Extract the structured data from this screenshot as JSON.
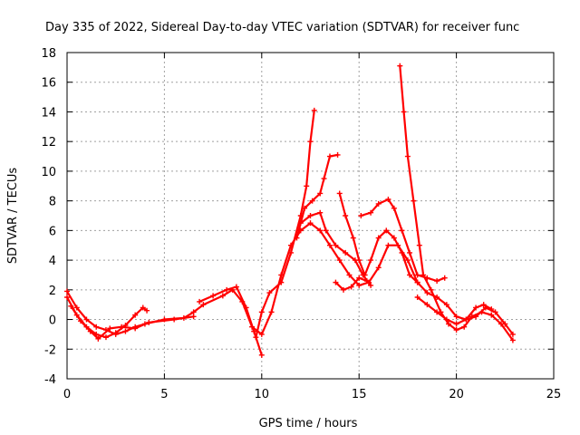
{
  "chart_data": {
    "type": "line",
    "title": "Day 335 of 2022, Sidereal Day-to-day VTEC variation (SDTVAR) for receiver func",
    "xlabel": "GPS time / hours",
    "ylabel": "SDTVAR / TECUs",
    "xlim": [
      0,
      25
    ],
    "ylim": [
      -4,
      18
    ],
    "xticks": [
      0,
      5,
      10,
      15,
      20,
      25
    ],
    "yticks": [
      -4,
      -2,
      0,
      2,
      4,
      6,
      8,
      10,
      12,
      14,
      16,
      18
    ],
    "grid": true,
    "color": "#ff0000",
    "marker": "plus",
    "series": [
      {
        "name": "track-1",
        "points": [
          [
            0.0,
            1.9
          ],
          [
            0.5,
            0.8
          ],
          [
            1.0,
            0.0
          ],
          [
            1.5,
            -0.5
          ],
          [
            2.0,
            -0.7
          ],
          [
            2.5,
            -1.0
          ],
          [
            3.0,
            -0.8
          ],
          [
            3.5,
            -0.5
          ],
          [
            4.0,
            -0.3
          ],
          [
            5.0,
            0.0
          ],
          [
            6.0,
            0.1
          ],
          [
            6.5,
            0.5
          ],
          [
            7.0,
            1.0
          ],
          [
            8.0,
            1.6
          ],
          [
            8.5,
            2.0
          ],
          [
            9.0,
            1.2
          ],
          [
            9.5,
            -0.5
          ],
          [
            10.0,
            -1.0
          ],
          [
            10.5,
            0.5
          ],
          [
            11.0,
            3.0
          ],
          [
            11.5,
            5.0
          ],
          [
            12.0,
            6.0
          ],
          [
            12.5,
            6.5
          ],
          [
            13.0,
            6.0
          ],
          [
            13.5,
            5.0
          ],
          [
            14.0,
            4.0
          ],
          [
            14.5,
            3.0
          ],
          [
            15.0,
            2.3
          ],
          [
            15.5,
            2.5
          ],
          [
            16.0,
            3.5
          ],
          [
            16.5,
            5.0
          ],
          [
            17.0,
            5.0
          ],
          [
            17.5,
            4.0
          ],
          [
            18.0,
            2.5
          ],
          [
            18.5,
            1.8
          ],
          [
            19.0,
            1.5
          ],
          [
            19.5,
            1.0
          ],
          [
            20.0,
            0.2
          ],
          [
            20.5,
            0.0
          ],
          [
            21.0,
            0.2
          ],
          [
            21.5,
            0.8
          ],
          [
            22.0,
            0.5
          ],
          [
            22.5,
            -0.3
          ],
          [
            22.9,
            -1.0
          ]
        ]
      },
      {
        "name": "track-2",
        "points": [
          [
            0.0,
            1.5
          ],
          [
            0.5,
            0.3
          ],
          [
            1.0,
            -0.5
          ],
          [
            1.5,
            -1.0
          ],
          [
            2.0,
            -1.2
          ],
          [
            2.5,
            -0.9
          ],
          [
            3.0,
            -0.4
          ],
          [
            3.5,
            0.3
          ],
          [
            3.9,
            0.8
          ],
          [
            4.1,
            0.6
          ]
        ]
      },
      {
        "name": "track-3",
        "points": [
          [
            0.2,
            0.9
          ],
          [
            0.7,
            -0.1
          ],
          [
            1.2,
            -0.8
          ],
          [
            1.6,
            -1.3
          ],
          [
            2.2,
            -0.6
          ],
          [
            2.8,
            -0.5
          ],
          [
            3.5,
            -0.6
          ],
          [
            4.2,
            -0.2
          ],
          [
            5.5,
            0.0
          ],
          [
            6.5,
            0.2
          ]
        ]
      },
      {
        "name": "track-4",
        "points": [
          [
            6.8,
            1.2
          ],
          [
            7.5,
            1.6
          ],
          [
            8.2,
            2.0
          ],
          [
            8.7,
            2.2
          ],
          [
            9.2,
            0.8
          ],
          [
            9.6,
            -0.8
          ],
          [
            10.0,
            -2.4
          ]
        ]
      },
      {
        "name": "track-5",
        "points": [
          [
            9.7,
            -1.2
          ],
          [
            10.0,
            0.5
          ],
          [
            10.4,
            1.8
          ],
          [
            11.0,
            2.5
          ],
          [
            11.5,
            4.5
          ],
          [
            12.0,
            7.0
          ],
          [
            12.3,
            9.0
          ],
          [
            12.5,
            12.0
          ],
          [
            12.7,
            14.1
          ]
        ]
      },
      {
        "name": "track-6",
        "points": [
          [
            11.8,
            5.5
          ],
          [
            12.2,
            7.5
          ],
          [
            12.6,
            8.0
          ],
          [
            13.0,
            8.5
          ],
          [
            13.2,
            9.5
          ],
          [
            13.5,
            11.0
          ],
          [
            13.9,
            11.1
          ]
        ]
      },
      {
        "name": "track-7",
        "points": [
          [
            12.0,
            6.5
          ],
          [
            12.5,
            7.0
          ],
          [
            13.0,
            7.2
          ],
          [
            13.3,
            6.0
          ],
          [
            13.8,
            5.0
          ],
          [
            14.3,
            4.5
          ],
          [
            14.8,
            4.0
          ],
          [
            15.2,
            3.0
          ],
          [
            15.6,
            2.3
          ]
        ]
      },
      {
        "name": "track-8",
        "points": [
          [
            14.0,
            8.5
          ],
          [
            14.3,
            7.0
          ],
          [
            14.7,
            5.5
          ],
          [
            15.0,
            4.0
          ],
          [
            15.3,
            3.0
          ],
          [
            15.6,
            4.0
          ],
          [
            16.0,
            5.5
          ],
          [
            16.4,
            6.0
          ],
          [
            16.8,
            5.5
          ],
          [
            17.2,
            4.5
          ],
          [
            17.6,
            3.0
          ],
          [
            18.0,
            2.5
          ]
        ]
      },
      {
        "name": "track-9",
        "points": [
          [
            15.1,
            7.0
          ],
          [
            15.6,
            7.2
          ],
          [
            16.0,
            7.8
          ],
          [
            16.5,
            8.1
          ],
          [
            16.8,
            7.5
          ],
          [
            17.2,
            6.0
          ],
          [
            17.6,
            4.5
          ],
          [
            18.0,
            3.0
          ],
          [
            18.5,
            2.8
          ],
          [
            19.0,
            2.6
          ],
          [
            19.4,
            2.8
          ]
        ]
      },
      {
        "name": "track-10",
        "points": [
          [
            17.1,
            17.1
          ],
          [
            17.3,
            14.0
          ],
          [
            17.5,
            11.0
          ],
          [
            17.8,
            8.0
          ],
          [
            18.1,
            5.0
          ],
          [
            18.3,
            3.0
          ],
          [
            18.7,
            2.0
          ],
          [
            19.2,
            0.5
          ],
          [
            19.6,
            -0.3
          ],
          [
            20.0,
            -0.7
          ],
          [
            20.4,
            -0.5
          ],
          [
            20.8,
            0.2
          ],
          [
            21.3,
            0.5
          ],
          [
            21.8,
            0.3
          ],
          [
            22.3,
            -0.3
          ],
          [
            22.9,
            -1.4
          ]
        ]
      },
      {
        "name": "track-11",
        "points": [
          [
            13.8,
            2.5
          ],
          [
            14.2,
            2.0
          ],
          [
            14.6,
            2.2
          ],
          [
            15.0,
            2.8
          ],
          [
            15.4,
            2.6
          ]
        ]
      },
      {
        "name": "track-12",
        "points": [
          [
            18.0,
            1.5
          ],
          [
            18.5,
            1.0
          ],
          [
            19.0,
            0.5
          ],
          [
            19.5,
            0.0
          ],
          [
            20.0,
            -0.3
          ],
          [
            20.5,
            0.0
          ],
          [
            21.0,
            0.8
          ],
          [
            21.4,
            1.0
          ],
          [
            21.8,
            0.7
          ]
        ]
      }
    ]
  }
}
